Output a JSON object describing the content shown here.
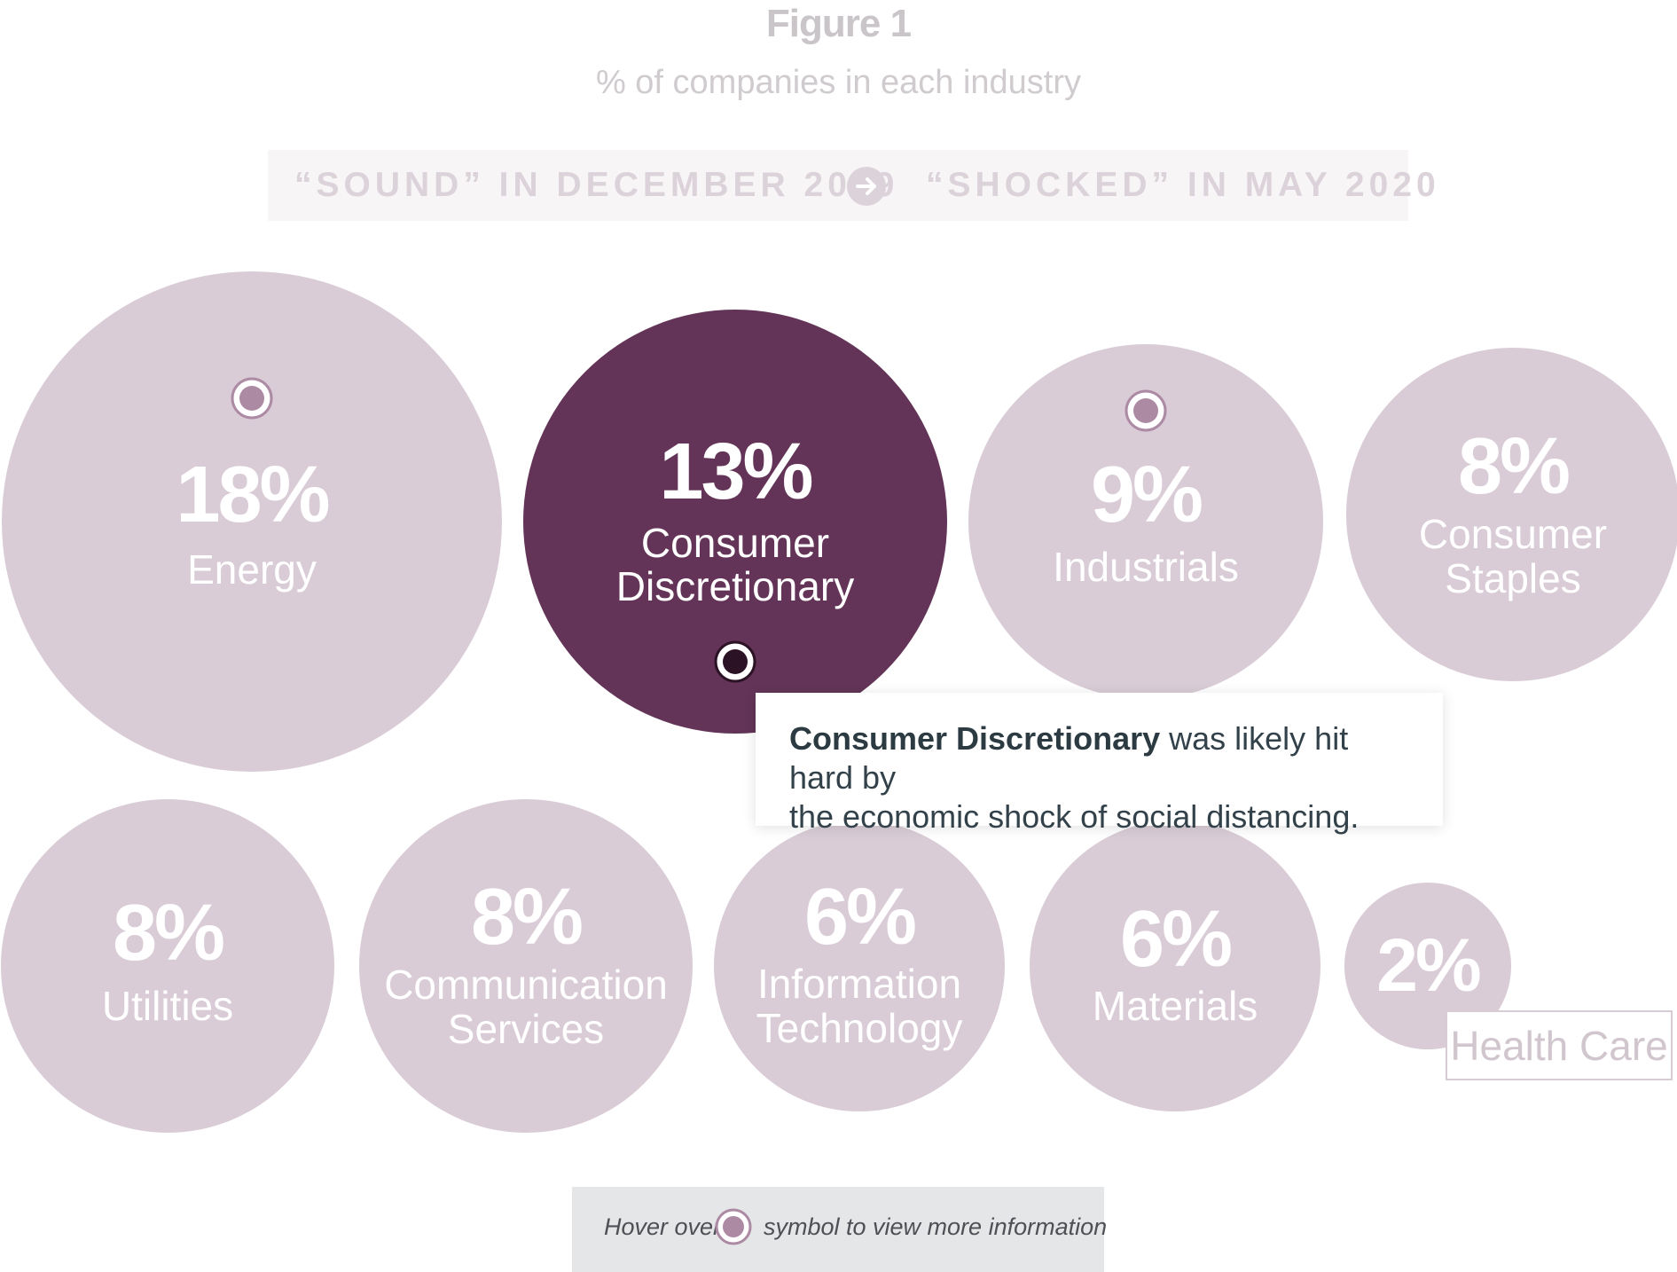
{
  "figure": {
    "title": "Figure 1",
    "subtitle": "% of companies in each industry"
  },
  "banner": {
    "left_label": "“SOUND” IN DECEMBER 2019",
    "right_label": "“SHOCKED” IN MAY 2020",
    "arrow_icon": "arrow-right-icon"
  },
  "tooltip": {
    "bold": "Consumer Discretionary",
    "rest_line1": " was likely hit hard by",
    "rest_line2": "the economic shock of social distancing."
  },
  "hint": {
    "before": "Hover over",
    "after": "symbol to view more information",
    "icon": "info-target-icon"
  },
  "colors": {
    "bubble": "#d9ccd6",
    "bubble_highlight": "#633457",
    "marker_light": "#ad8aa3",
    "marker_dark": "#2b1325",
    "text_on_bubble": "#ffffff"
  },
  "chart_data": {
    "type": "bubble",
    "unit": "%",
    "categories": [
      "Energy",
      "Consumer Discretionary",
      "Industrials",
      "Consumer Staples",
      "Utilities",
      "Communication Services",
      "Information Technology",
      "Materials",
      "Health Care"
    ],
    "values": [
      18,
      13,
      9,
      8,
      8,
      8,
      6,
      6,
      2
    ],
    "value_labels": [
      "18%",
      "13%",
      "9%",
      "8%",
      "8%",
      "8%",
      "6%",
      "6%",
      "2%"
    ],
    "highlighted": "Consumer Discretionary",
    "info_markers": [
      "Energy",
      "Consumer Discretionary",
      "Industrials"
    ]
  }
}
